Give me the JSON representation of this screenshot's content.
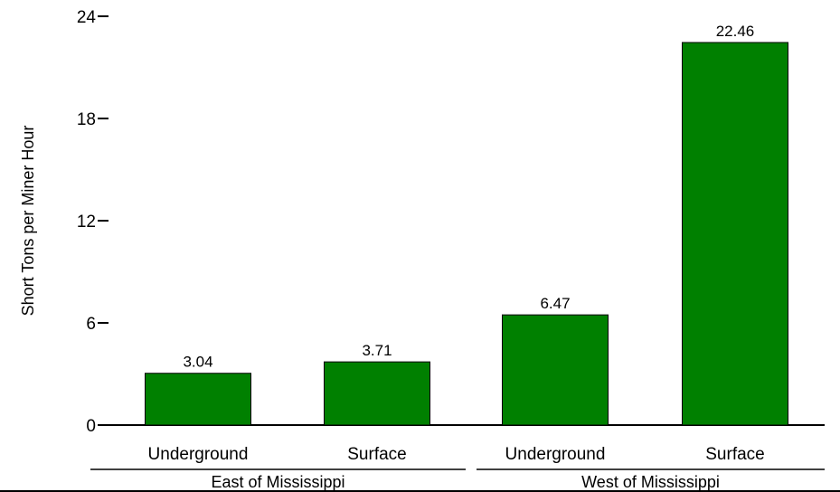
{
  "chart_data": {
    "type": "bar",
    "ylabel": "Short Tons per Miner Hour",
    "ylim": [
      0,
      24
    ],
    "yticks": [
      0,
      6,
      12,
      18,
      24
    ],
    "bar_color": "#008000",
    "groups": [
      {
        "label": "East of Mississippi",
        "categories": [
          "Underground",
          "Surface"
        ],
        "values": [
          3.04,
          3.71
        ]
      },
      {
        "label": "West of Mississippi",
        "categories": [
          "Underground",
          "Surface"
        ],
        "values": [
          6.47,
          22.46
        ]
      }
    ],
    "data_labels": [
      "3.04",
      "3.71",
      "6.47",
      "22.46"
    ],
    "grid": false
  }
}
